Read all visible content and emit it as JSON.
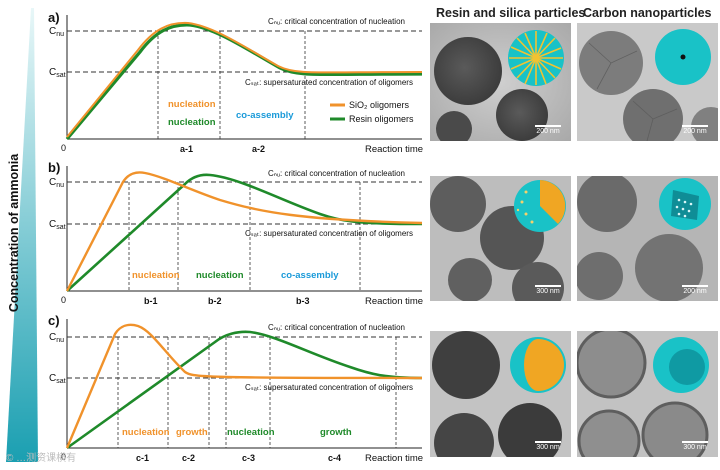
{
  "figure": {
    "left_axis_label": "Concentration of ammonia",
    "column_titles": [
      "Resin and silica particles",
      "Carbon nanoparticles"
    ],
    "scale_bars": [
      [
        "200 nm",
        "200 nm"
      ],
      [
        "300 nm",
        "200 nm"
      ],
      [
        "300 nm",
        "300 nm"
      ]
    ],
    "watermark": "© …测资课横有",
    "colors": {
      "silica": "#f0922b",
      "resin": "#1f8a2a",
      "co_assembly": "#1a9ad9",
      "cyan_shell": "#1ec8cc"
    }
  },
  "panels": [
    {
      "letter": "a)",
      "ylabel_nu": "C",
      "ylabel_nu_sub": "nu",
      "ylabel_sat": "C",
      "ylabel_sat_sub": "sat",
      "origin": "0",
      "xlabel": "Reaction time",
      "nu_annotation": "Cₙᵤ: critical concentration of nucleation",
      "sat_annotation": "Cₛₐₜ: supersaturated concentration of oligomers",
      "points": [
        "a-1",
        "a-2"
      ],
      "phases": [
        {
          "text": "nucleation",
          "color": "silica"
        },
        {
          "text": "nucleation",
          "color": "resin"
        },
        {
          "text": "co-assembly",
          "color": "co_assembly"
        }
      ],
      "legend": [
        {
          "label": "SiO₂ oligomers",
          "color": "silica"
        },
        {
          "label": "Resin oligomers",
          "color": "resin"
        }
      ]
    },
    {
      "letter": "b)",
      "ylabel_nu": "C",
      "ylabel_nu_sub": "nu",
      "ylabel_sat": "C",
      "ylabel_sat_sub": "sat",
      "origin": "0",
      "xlabel": "Reaction time",
      "nu_annotation": "Cₙᵤ: critical concentration of nucleation",
      "sat_annotation": "Cₛₐₜ: supersaturated concentration of oligomers",
      "points": [
        "b-1",
        "b-2",
        "b-3"
      ],
      "phases": [
        {
          "text": "nucleation",
          "color": "silica"
        },
        {
          "text": "nucleation",
          "color": "resin"
        },
        {
          "text": "co-assembly",
          "color": "co_assembly"
        }
      ]
    },
    {
      "letter": "c)",
      "ylabel_nu": "C",
      "ylabel_nu_sub": "nu",
      "ylabel_sat": "C",
      "ylabel_sat_sub": "sat",
      "origin": "0",
      "xlabel": "Reaction time",
      "nu_annotation": "Cₙᵤ: critical concentration of nucleation",
      "sat_annotation": "Cₛₐₜ: supersaturated concentration of oligomers",
      "points": [
        "c-1",
        "c-2",
        "c-3",
        "c-4"
      ],
      "phases": [
        {
          "text": "nucleation",
          "color": "silica"
        },
        {
          "text": "growth",
          "color": "silica"
        },
        {
          "text": "nucleation",
          "color": "resin"
        },
        {
          "text": "growth",
          "color": "resin"
        }
      ]
    }
  ]
}
